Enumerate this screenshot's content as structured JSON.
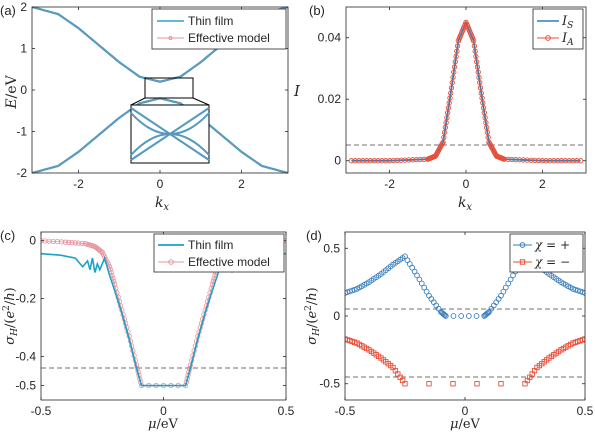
{
  "chart_data": [
    {
      "panel": "(a)",
      "type": "line",
      "ylabel": "E/eV",
      "xlabel": "k_x",
      "xlim": [
        -3.14159,
        3.14159
      ],
      "ylim": [
        -2,
        2
      ],
      "xticks": [
        "-2",
        "0",
        "2"
      ],
      "yticks": [
        "-2",
        "-1",
        "0",
        "1",
        "2"
      ],
      "legend_position": "top-right",
      "series": [
        {
          "name": "Thin film",
          "color": "#2aa3c4",
          "marker": "line"
        },
        {
          "name": "Effective model",
          "color": "#e8909a",
          "marker": "dot"
        }
      ],
      "bands": [
        {
          "label": "upper",
          "x": [
            -3.14,
            -2.5,
            -2.0,
            -1.5,
            -1.0,
            -0.5,
            0,
            0.5,
            1.0,
            1.5,
            2.0,
            2.5,
            3.14
          ],
          "y": [
            2.0,
            1.83,
            1.49,
            1.08,
            0.67,
            0.32,
            0.2,
            0.32,
            0.67,
            1.08,
            1.49,
            1.83,
            2.0
          ]
        },
        {
          "label": "lower",
          "x": [
            -3.14,
            -2.5,
            -2.0,
            -1.5,
            -1.0,
            -0.5,
            0,
            0.5,
            1.0,
            1.5,
            2.0,
            2.5,
            3.14
          ],
          "y": [
            -2.0,
            -1.83,
            -1.49,
            -1.08,
            -0.67,
            -0.32,
            -0.2,
            -0.32,
            -0.67,
            -1.08,
            -1.49,
            -1.83,
            -2.0
          ]
        }
      ]
    },
    {
      "panel": "(b)",
      "type": "line",
      "ylabel": "I",
      "xlabel": "k_x",
      "xlim": [
        -3.14159,
        3.14159
      ],
      "ylim": [
        -0.004,
        0.05
      ],
      "xticks": [
        "-2",
        "0",
        "2"
      ],
      "yticks": [
        "0",
        "0.02",
        "0.04"
      ],
      "legend_position": "top-right",
      "series": [
        {
          "name": "I_S",
          "color": "#2e7fb8",
          "marker": "line"
        },
        {
          "name": "I_A",
          "color": "#e8503a",
          "marker": "circle"
        }
      ],
      "x": [
        -3.0,
        -2.0,
        -1.0,
        -0.8,
        -0.6,
        -0.4,
        -0.2,
        0,
        0.2,
        0.4,
        0.6,
        0.8,
        1.0,
        2.0,
        3.0
      ],
      "y": [
        0.0,
        0.0,
        0.0005,
        0.0015,
        0.006,
        0.022,
        0.039,
        0.045,
        0.039,
        0.022,
        0.006,
        0.0015,
        0.0005,
        0.0,
        0.0
      ],
      "reference_line_y": 0
    },
    {
      "panel": "(c)",
      "type": "line",
      "ylabel": "σ_H/(e^2/h)",
      "xlabel": "μ/eV",
      "xlim": [
        -0.5,
        0.5
      ],
      "ylim": [
        -0.55,
        0.03
      ],
      "xticks": [
        "-0.5",
        "0",
        "0.5"
      ],
      "yticks": [
        "0",
        "-0.2",
        "-0.4",
        "-0.5"
      ],
      "ytick_values": [
        0,
        -0.2,
        -0.4,
        -0.5
      ],
      "legend_position": "top-right",
      "series": [
        {
          "name": "Thin film",
          "color": "#19a3c8",
          "marker": "line",
          "x": [
            -0.5,
            -0.42,
            -0.36,
            -0.33,
            -0.31,
            -0.3,
            -0.29,
            -0.28,
            -0.27,
            -0.26,
            -0.24,
            -0.22,
            -0.2,
            -0.17,
            -0.14,
            -0.11,
            -0.09,
            0.09,
            0.11,
            0.14,
            0.17,
            0.2,
            0.22,
            0.24,
            0.26,
            0.27,
            0.28,
            0.29,
            0.3,
            0.31,
            0.33,
            0.36,
            0.42,
            0.5
          ],
          "y": [
            -0.045,
            -0.05,
            -0.06,
            -0.09,
            -0.07,
            -0.1,
            -0.06,
            -0.11,
            -0.08,
            -0.1,
            -0.06,
            -0.12,
            -0.17,
            -0.25,
            -0.34,
            -0.44,
            -0.5,
            -0.5,
            -0.44,
            -0.34,
            -0.25,
            -0.17,
            -0.12,
            -0.06,
            -0.1,
            -0.08,
            -0.11,
            -0.06,
            -0.1,
            -0.07,
            -0.09,
            -0.06,
            -0.05,
            -0.045
          ]
        },
        {
          "name": "Effective model",
          "color": "#e8909a",
          "marker": "circle",
          "x": [
            -0.5,
            -0.4,
            -0.32,
            -0.28,
            -0.25,
            -0.22,
            -0.2,
            -0.17,
            -0.14,
            -0.11,
            -0.09,
            0.09,
            0.11,
            0.14,
            0.17,
            0.2,
            0.22,
            0.25,
            0.28,
            0.32,
            0.4,
            0.5
          ],
          "y": [
            0.0,
            -0.005,
            -0.01,
            -0.02,
            -0.04,
            -0.09,
            -0.15,
            -0.24,
            -0.33,
            -0.43,
            -0.5,
            -0.5,
            -0.43,
            -0.33,
            -0.24,
            -0.15,
            -0.09,
            -0.04,
            -0.02,
            -0.01,
            -0.005,
            0.0
          ]
        }
      ],
      "reference_line_y": -0.5
    },
    {
      "panel": "(d)",
      "type": "scatter",
      "ylabel": "σ_H/(e^2/h)",
      "xlabel": "μ/eV",
      "xlim": [
        -0.5,
        0.5
      ],
      "ylim": [
        -0.62,
        0.62
      ],
      "xticks": [
        "-0.5",
        "0",
        "0.5"
      ],
      "yticks": [
        "0.5",
        "0",
        "-0.5"
      ],
      "ytick_values": [
        0.5,
        0,
        -0.5
      ],
      "legend_position": "top-right",
      "series": [
        {
          "name": "χ = +",
          "color": "#3b7fc0",
          "marker": "circle",
          "x": [
            -0.5,
            -0.45,
            -0.4,
            -0.35,
            -0.3,
            -0.25,
            -0.2,
            -0.15,
            -0.1,
            -0.08,
            0.08,
            0.1,
            0.15,
            0.2,
            0.25,
            0.3,
            0.35,
            0.4,
            0.45,
            0.5
          ],
          "y": [
            0.17,
            0.2,
            0.25,
            0.31,
            0.38,
            0.44,
            0.3,
            0.15,
            0.03,
            0.0,
            0.0,
            0.03,
            0.15,
            0.3,
            0.44,
            0.38,
            0.31,
            0.25,
            0.2,
            0.17
          ]
        },
        {
          "name": "χ = −",
          "color": "#e8503a",
          "marker": "square",
          "x": [
            -0.5,
            -0.45,
            -0.4,
            -0.35,
            -0.3,
            -0.25,
            0.25,
            0.3,
            0.35,
            0.4,
            0.45,
            0.5
          ],
          "y": [
            -0.17,
            -0.2,
            -0.25,
            -0.31,
            -0.38,
            -0.5,
            -0.5,
            -0.38,
            -0.31,
            -0.25,
            -0.2,
            -0.17
          ]
        }
      ],
      "reference_lines_y": [
        0,
        -0.5
      ]
    }
  ]
}
